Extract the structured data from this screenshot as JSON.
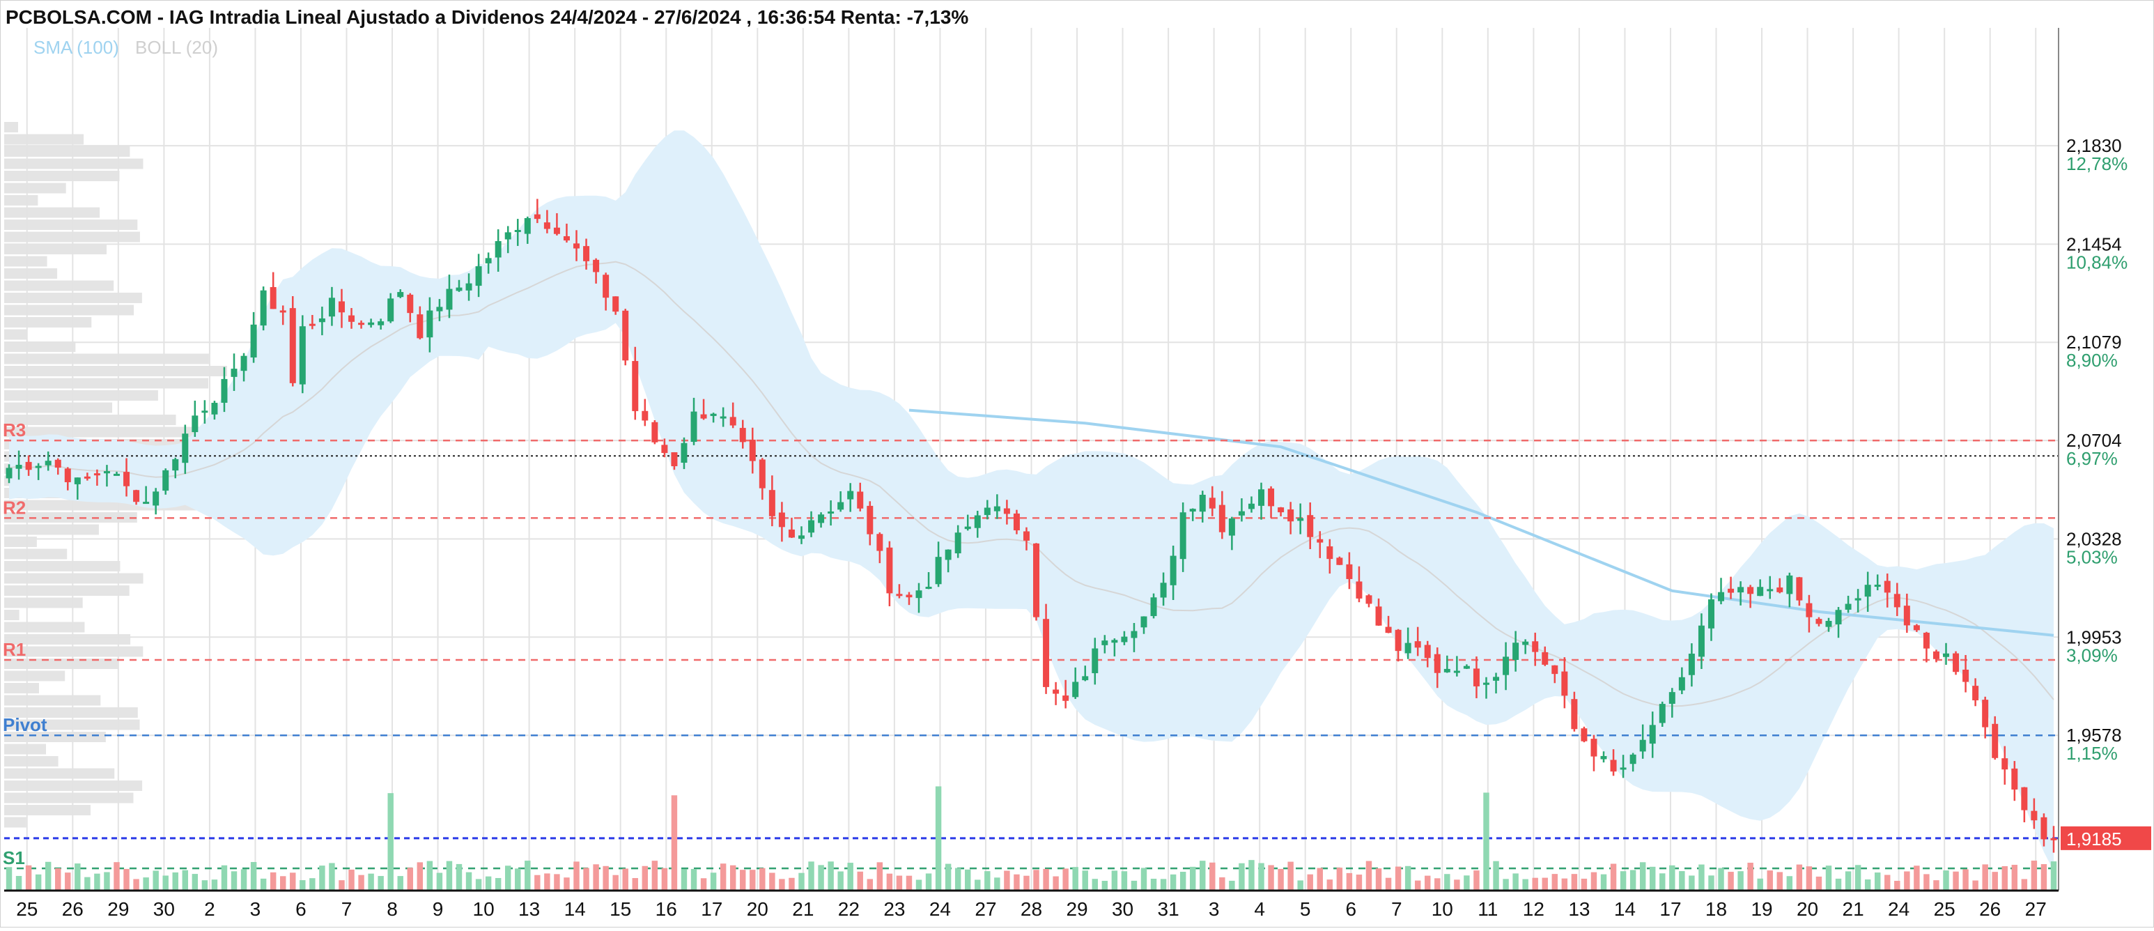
{
  "chart_data": {
    "type": "candlestick",
    "title": "PCBOLSA.COM - IAG Intradia Lineal Ajustado a Dividenos 24/4/2024 - 27/6/2024 , 16:36:54 Renta: -7,13%",
    "indicators": [
      {
        "label": "SMA (100)",
        "color": "#9fd3f0"
      },
      {
        "label": "BOLL (20)",
        "color": "#d4d4d4"
      }
    ],
    "ylim": [
      1.8985,
      2.228
    ],
    "y_ticks": [
      {
        "value": 2.183,
        "label": "2,1830",
        "pct": "12,78%"
      },
      {
        "value": 2.1454,
        "label": "2,1454",
        "pct": "10,84%"
      },
      {
        "value": 2.1079,
        "label": "2,1079",
        "pct": "8,90%"
      },
      {
        "value": 2.0704,
        "label": "2,0704",
        "pct": "6,97%"
      },
      {
        "value": 2.0328,
        "label": "2,0328",
        "pct": "5,03%"
      },
      {
        "value": 1.9953,
        "label": "1,9953",
        "pct": "3,09%"
      },
      {
        "value": 1.9578,
        "label": "1,9578",
        "pct": "1,15%"
      }
    ],
    "last_price": {
      "value": 1.9185,
      "label": "1,9185",
      "color": "#f04848"
    },
    "levels": [
      {
        "name": "R3",
        "value": 2.0704,
        "color": "#f06a6a"
      },
      {
        "name": "R2",
        "value": 2.0408,
        "color": "#f06a6a"
      },
      {
        "name": "R1",
        "value": 1.9866,
        "color": "#f06a6a"
      },
      {
        "name": "Pivot",
        "value": 1.9578,
        "color": "#3f7fd0"
      },
      {
        "name": "S1",
        "value": 1.907,
        "color": "#30a070"
      }
    ],
    "x_labels": [
      "25",
      "26",
      "29",
      "30",
      "2",
      "3",
      "6",
      "7",
      "8",
      "9",
      "10",
      "13",
      "14",
      "15",
      "16",
      "17",
      "20",
      "21",
      "22",
      "23",
      "24",
      "27",
      "28",
      "29",
      "30",
      "31",
      "3",
      "4",
      "5",
      "6",
      "7",
      "10",
      "11",
      "12",
      "13",
      "14",
      "17",
      "18",
      "19",
      "20",
      "21",
      "24",
      "25",
      "26",
      "27"
    ],
    "close_anchors": [
      [
        0,
        2.06
      ],
      [
        4,
        2.063
      ],
      [
        7,
        2.054
      ],
      [
        10,
        2.06
      ],
      [
        12,
        2.052
      ],
      [
        14,
        2.047
      ],
      [
        16,
        2.058
      ],
      [
        19,
        2.08
      ],
      [
        23,
        2.095
      ],
      [
        26,
        2.125
      ],
      [
        28,
        2.12
      ],
      [
        29,
        2.092
      ],
      [
        30,
        2.113
      ],
      [
        33,
        2.122
      ],
      [
        36,
        2.115
      ],
      [
        38,
        2.118
      ],
      [
        40,
        2.128
      ],
      [
        42,
        2.112
      ],
      [
        44,
        2.123
      ],
      [
        47,
        2.132
      ],
      [
        50,
        2.145
      ],
      [
        53,
        2.157
      ],
      [
        56,
        2.152
      ],
      [
        59,
        2.138
      ],
      [
        62,
        2.12
      ],
      [
        64,
        2.082
      ],
      [
        66,
        2.07
      ],
      [
        68,
        2.062
      ],
      [
        70,
        2.08
      ],
      [
        72,
        2.082
      ],
      [
        74,
        2.074
      ],
      [
        76,
        2.06
      ],
      [
        78,
        2.04
      ],
      [
        80,
        2.033
      ],
      [
        82,
        2.041
      ],
      [
        84,
        2.045
      ],
      [
        86,
        2.05
      ],
      [
        88,
        2.036
      ],
      [
        90,
        2.015
      ],
      [
        92,
        2.01
      ],
      [
        94,
        2.017
      ],
      [
        96,
        2.029
      ],
      [
        98,
        2.037
      ],
      [
        100,
        2.047
      ],
      [
        102,
        2.04
      ],
      [
        104,
        2.035
      ],
      [
        106,
        1.975
      ],
      [
        108,
        1.97
      ],
      [
        110,
        1.982
      ],
      [
        112,
        1.996
      ],
      [
        114,
        1.998
      ],
      [
        116,
        2.003
      ],
      [
        118,
        2.014
      ],
      [
        120,
        2.043
      ],
      [
        122,
        2.051
      ],
      [
        124,
        2.038
      ],
      [
        126,
        2.045
      ],
      [
        128,
        2.05
      ],
      [
        130,
        2.045
      ],
      [
        132,
        2.04
      ],
      [
        134,
        2.032
      ],
      [
        136,
        2.023
      ],
      [
        138,
        2.013
      ],
      [
        140,
        2.0
      ],
      [
        142,
        1.991
      ],
      [
        144,
        1.99
      ],
      [
        146,
        1.983
      ],
      [
        148,
        1.985
      ],
      [
        150,
        1.979
      ],
      [
        152,
        1.982
      ],
      [
        154,
        1.996
      ],
      [
        156,
        1.99
      ],
      [
        158,
        1.981
      ],
      [
        160,
        1.96
      ],
      [
        162,
        1.952
      ],
      [
        164,
        1.943
      ],
      [
        166,
        1.948
      ],
      [
        168,
        1.962
      ],
      [
        170,
        1.972
      ],
      [
        172,
        1.989
      ],
      [
        174,
        2.008
      ],
      [
        176,
        2.012
      ],
      [
        178,
        2.011
      ],
      [
        180,
        2.014
      ],
      [
        182,
        2.016
      ],
      [
        184,
        2.002
      ],
      [
        186,
        2.0
      ],
      [
        188,
        2.008
      ],
      [
        190,
        2.013
      ],
      [
        192,
        2.015
      ],
      [
        194,
        2.0
      ],
      [
        196,
        1.99
      ],
      [
        198,
        1.988
      ],
      [
        200,
        1.98
      ],
      [
        202,
        1.962
      ],
      [
        204,
        1.942
      ],
      [
        206,
        1.932
      ],
      [
        208,
        1.92
      ],
      [
        209,
        1.9185
      ]
    ],
    "candles": 210,
    "candle_up_color": "#26a671",
    "candle_down_color": "#f04848",
    "band_color": "#dff0fb",
    "sma_color": "#9fd3f0",
    "sma_points": [
      [
        92,
        2.082
      ],
      [
        110,
        2.077
      ],
      [
        130,
        2.068
      ],
      [
        150,
        2.043
      ],
      [
        170,
        2.013
      ],
      [
        185,
        2.005
      ],
      [
        209,
        1.996
      ]
    ],
    "grid": true
  }
}
